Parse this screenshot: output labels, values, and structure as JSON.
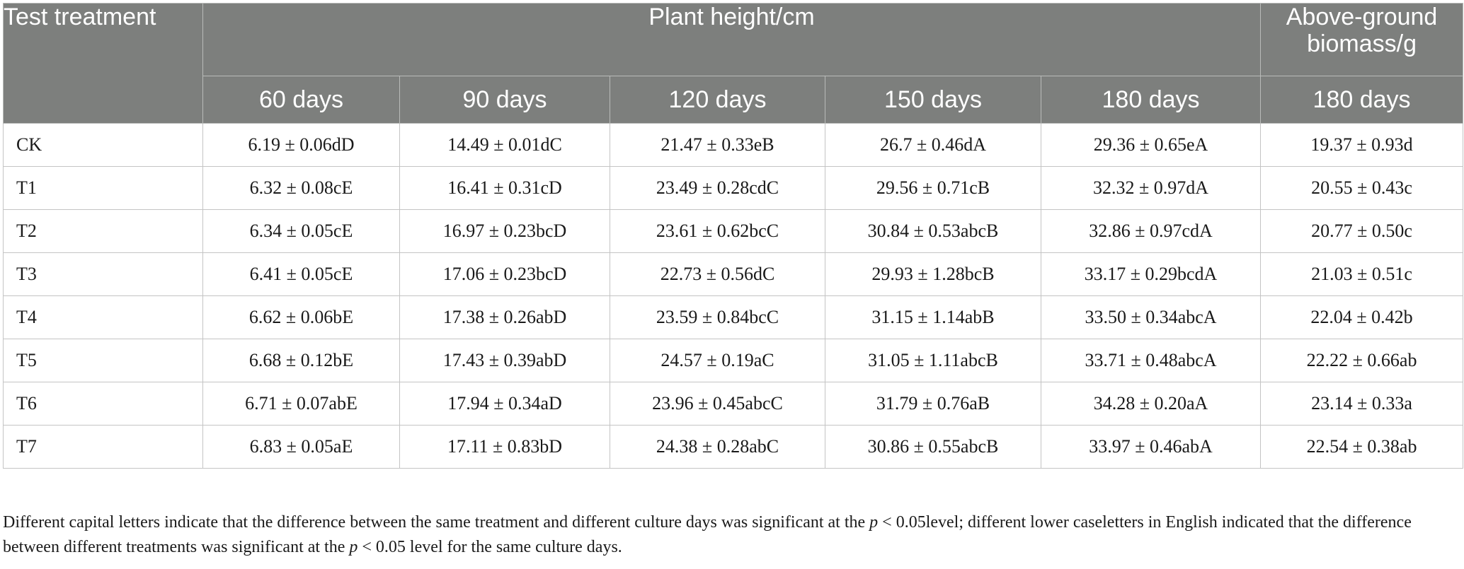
{
  "table": {
    "header": {
      "test_treatment": "Test treatment",
      "plant_height": "Plant height/cm",
      "biomass": "Above-ground biomass/g",
      "days": [
        "60 days",
        "90 days",
        "120 days",
        "150 days",
        "180 days",
        "180 days"
      ]
    },
    "rows": [
      {
        "label": "CK",
        "cells": [
          "6.19 ± 0.06dD",
          "14.49 ± 0.01dC",
          "21.47 ± 0.33eB",
          "26.7 ± 0.46dA",
          "29.36 ± 0.65eA",
          "19.37 ± 0.93d"
        ]
      },
      {
        "label": "T1",
        "cells": [
          "6.32 ± 0.08cE",
          "16.41 ± 0.31cD",
          "23.49 ± 0.28cdC",
          "29.56 ± 0.71cB",
          "32.32 ± 0.97dA",
          "20.55 ± 0.43c"
        ]
      },
      {
        "label": "T2",
        "cells": [
          "6.34 ± 0.05cE",
          "16.97 ± 0.23bcD",
          "23.61 ± 0.62bcC",
          "30.84 ± 0.53abcB",
          "32.86 ± 0.97cdA",
          "20.77 ± 0.50c"
        ]
      },
      {
        "label": "T3",
        "cells": [
          "6.41 ± 0.05cE",
          "17.06 ± 0.23bcD",
          "22.73 ± 0.56dC",
          "29.93 ± 1.28bcB",
          "33.17 ± 0.29bcdA",
          "21.03 ± 0.51c"
        ]
      },
      {
        "label": "T4",
        "cells": [
          "6.62 ± 0.06bE",
          "17.38 ± 0.26abD",
          "23.59 ± 0.84bcC",
          "31.15 ± 1.14abB",
          "33.50 ± 0.34abcA",
          "22.04 ± 0.42b"
        ]
      },
      {
        "label": "T5",
        "cells": [
          "6.68 ± 0.12bE",
          "17.43 ± 0.39abD",
          "24.57 ± 0.19aC",
          "31.05 ± 1.11abcB",
          "33.71 ± 0.48abcA",
          "22.22 ± 0.66ab"
        ]
      },
      {
        "label": "T6",
        "cells": [
          "6.71 ± 0.07abE",
          "17.94 ± 0.34aD",
          "23.96 ± 0.45abcC",
          "31.79 ± 0.76aB",
          "34.28 ± 0.20aA",
          "23.14 ± 0.33a"
        ]
      },
      {
        "label": "T7",
        "cells": [
          "6.83 ± 0.05aE",
          "17.11 ± 0.83bD",
          "24.38 ± 0.28abC",
          "30.86 ± 0.55abcB",
          "33.97 ± 0.46abA",
          "22.54 ± 0.38ab"
        ]
      }
    ]
  },
  "footnote": {
    "part1": "Different capital letters indicate that the difference between the same treatment and different culture days was significant at the ",
    "p1": "p",
    "part2": " < 0.05level; different lower caseletters in English indicated that the difference between different treatments was significant at the ",
    "p2": "p",
    "part3": " < 0.05 level for the same culture days."
  },
  "colors": {
    "header_bg": "#7d7f7d",
    "header_text": "#ffffff",
    "grid_line": "#c4c4c4"
  }
}
